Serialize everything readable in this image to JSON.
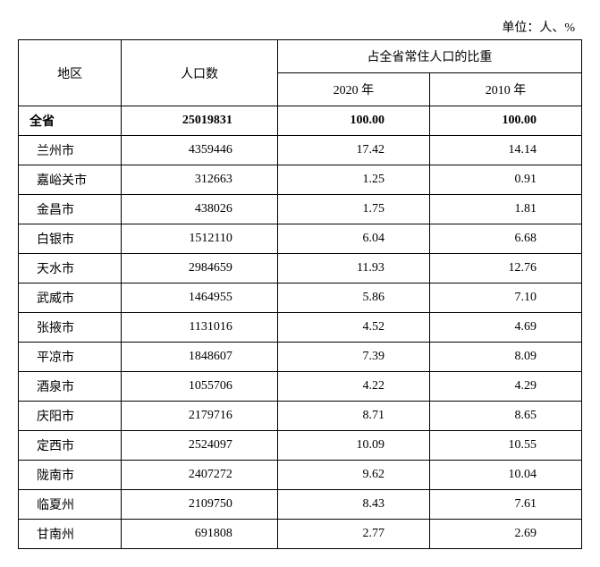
{
  "unit_label": "单位：人、%",
  "headers": {
    "region": "地区",
    "population": "人口数",
    "pct_group": "占全省常住人口的比重",
    "year_2020": "2020 年",
    "year_2010": "2010 年"
  },
  "total_row": {
    "region": "全省",
    "population": "25019831",
    "pct_2020": "100.00",
    "pct_2010": "100.00"
  },
  "rows": [
    {
      "region": "兰州市",
      "population": "4359446",
      "pct_2020": "17.42",
      "pct_2010": "14.14"
    },
    {
      "region": "嘉峪关市",
      "population": "312663",
      "pct_2020": "1.25",
      "pct_2010": "0.91"
    },
    {
      "region": "金昌市",
      "population": "438026",
      "pct_2020": "1.75",
      "pct_2010": "1.81"
    },
    {
      "region": "白银市",
      "population": "1512110",
      "pct_2020": "6.04",
      "pct_2010": "6.68"
    },
    {
      "region": "天水市",
      "population": "2984659",
      "pct_2020": "11.93",
      "pct_2010": "12.76"
    },
    {
      "region": "武威市",
      "population": "1464955",
      "pct_2020": "5.86",
      "pct_2010": "7.10"
    },
    {
      "region": "张掖市",
      "population": "1131016",
      "pct_2020": "4.52",
      "pct_2010": "4.69"
    },
    {
      "region": "平凉市",
      "population": "1848607",
      "pct_2020": "7.39",
      "pct_2010": "8.09"
    },
    {
      "region": "酒泉市",
      "population": "1055706",
      "pct_2020": "4.22",
      "pct_2010": "4.29"
    },
    {
      "region": "庆阳市",
      "population": "2179716",
      "pct_2020": "8.71",
      "pct_2010": "8.65"
    },
    {
      "region": "定西市",
      "population": "2524097",
      "pct_2020": "10.09",
      "pct_2010": "10.55"
    },
    {
      "region": "陇南市",
      "population": "2407272",
      "pct_2020": "9.62",
      "pct_2010": "10.04"
    },
    {
      "region": "临夏州",
      "population": "2109750",
      "pct_2020": "8.43",
      "pct_2010": "7.61"
    },
    {
      "region": "甘南州",
      "population": "691808",
      "pct_2020": "2.77",
      "pct_2010": "2.69"
    }
  ],
  "style": {
    "border_color": "#000000",
    "background_color": "#ffffff",
    "text_color": "#000000",
    "font_size": 14
  }
}
